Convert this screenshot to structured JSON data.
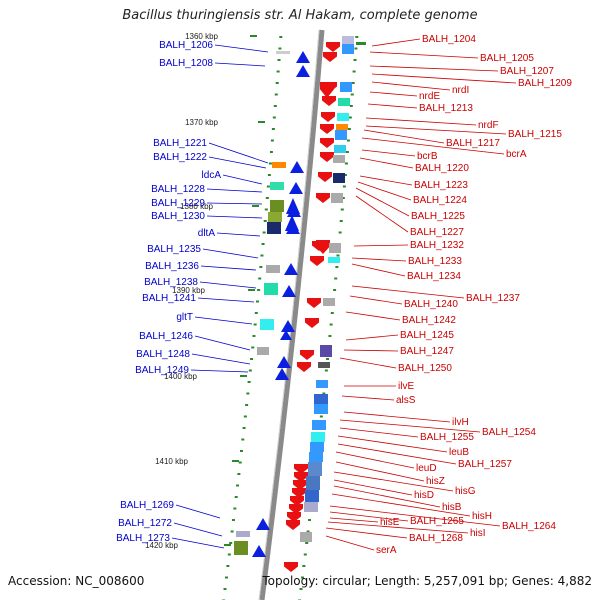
{
  "title": "Bacillus thuringiensis str. Al Hakam, complete genome",
  "footer": {
    "accession": "Accession: NC_008600",
    "topology": "Topology: circular; Length: 5,257,091 bp; Genes: 4,882"
  },
  "kbp_ticks": [
    "1360 kbp",
    "1370 kbp",
    "1380 kbp",
    "1390 kbp",
    "1400 kbp",
    "1410 kbp",
    "1420 kbp"
  ],
  "left_labels": [
    "BALH_1206",
    "BALH_1208",
    "BALH_1221",
    "BALH_1222",
    "ldcA",
    "BALH_1228",
    "BALH_1229",
    "BALH_1230",
    "dltA",
    "BALH_1235",
    "BALH_1236",
    "BALH_1238",
    "BALH_1241",
    "gltT",
    "BALH_1246",
    "BALH_1248",
    "BALH_1249",
    "BALH_1269",
    "BALH_1272",
    "BALH_1273"
  ],
  "right_labels": [
    "BALH_1204",
    "BALH_1205",
    "BALH_1207",
    "BALH_1209",
    "nrdI",
    "nrdE",
    "BALH_1213",
    "nrdF",
    "BALH_1215",
    "BALH_1217",
    "bcrA",
    "bcrB",
    "BALH_1220",
    "BALH_1223",
    "BALH_1224",
    "BALH_1225",
    "BALH_1227",
    "BALH_1232",
    "BALH_1233",
    "BALH_1234",
    "BALH_1237",
    "BALH_1240",
    "BALH_1242",
    "BALH_1245",
    "BALH_1247",
    "BALH_1250",
    "ilvE",
    "alsS",
    "ilvH",
    "BALH_1254",
    "BALH_1255",
    "leuB",
    "BALH_1257",
    "leuD",
    "hisZ",
    "hisG",
    "hisD",
    "hisB",
    "hisH",
    "BALH_1264",
    "BALH_1265",
    "hisE",
    "hisI",
    "BALH_1268",
    "serA"
  ],
  "colors": {
    "left_text": "#0000cc",
    "right_text": "#cc0000",
    "backbone": "#8a8a8a",
    "forward_gene": "#0a1fe0",
    "reverse_gene": "#e81010",
    "tick_green": "#2a8a2a"
  }
}
